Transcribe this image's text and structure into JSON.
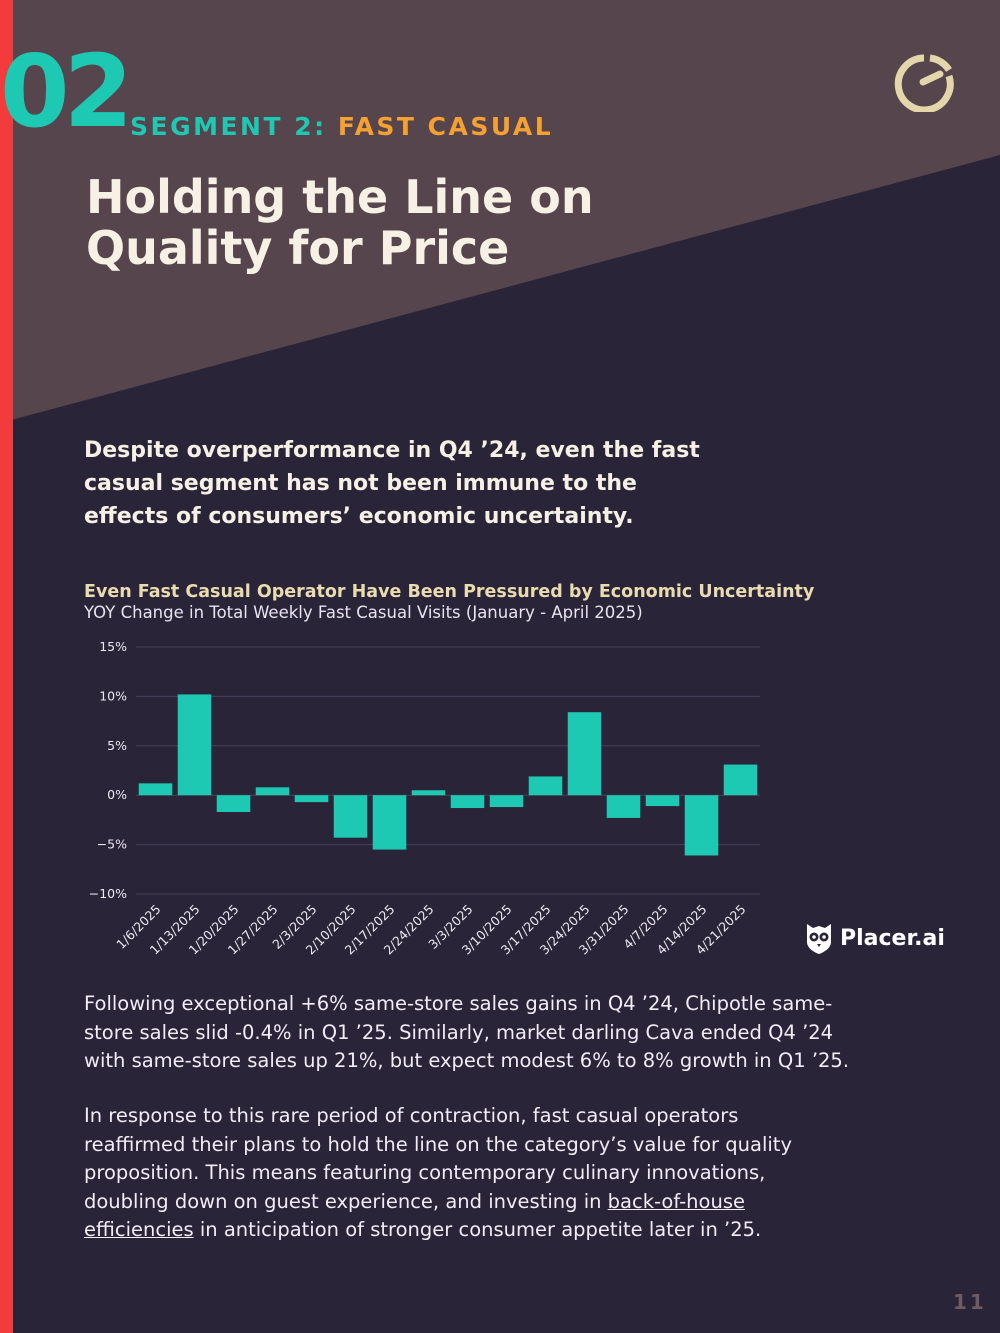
{
  "header": {
    "segment_number": "02",
    "segment_prefix": "SEGMENT 2:",
    "segment_name": "FAST CASUAL",
    "logo_icon": "clock-logo-icon"
  },
  "title": {
    "line1": "Holding the Line on",
    "line2": "Quality for Price"
  },
  "lede": {
    "line1": "Despite overperformance in Q4 ’24, even the fast",
    "line2": "casual segment has not been immune to the",
    "line3": "effects of consumers’ economic uncertainty."
  },
  "colors": {
    "bar": "#1ec9b3",
    "accent": "#f5a033",
    "red": "#f23b3b",
    "background": "#2a2438",
    "header_bg": "#56454d"
  },
  "chart_data": {
    "type": "bar",
    "title": "Even Fast Casual Operator Have Been Pressured by Economic Uncertainty",
    "subtitle": "YOY Change in Total Weekly Fast Casual Visits (January - April 2025)",
    "xlabel": "",
    "ylabel": "",
    "ylim": [
      -10,
      15
    ],
    "yticks": [
      15,
      10,
      5,
      0,
      -5,
      -10
    ],
    "ytick_labels": [
      "15%",
      "10%",
      "5%",
      "0%",
      "−5%",
      "−10%"
    ],
    "grid": true,
    "categories": [
      "1/6/2025",
      "1/13/2025",
      "1/20/2025",
      "1/27/2025",
      "2/3/2025",
      "2/10/2025",
      "2/17/2025",
      "2/24/2025",
      "3/3/2025",
      "3/10/2025",
      "3/17/2025",
      "3/24/2025",
      "3/31/2025",
      "4/7/2025",
      "4/14/2025",
      "4/21/2025"
    ],
    "values": [
      1.2,
      10.2,
      -1.7,
      0.8,
      -0.7,
      -4.3,
      -5.5,
      0.5,
      -1.3,
      -1.2,
      1.9,
      8.4,
      -2.3,
      -1.1,
      -6.1,
      3.1
    ]
  },
  "brand": {
    "name": "Placer.ai",
    "icon": "owl-icon"
  },
  "body": {
    "p1_line1": "Following exceptional +6% same-store sales gains in Q4 ’24, Chipotle same-",
    "p1_line2": "store sales slid -0.4% in Q1 ’25. Similarly, market darling Cava ended Q4 ’24",
    "p1_line3": "with same-store sales up 21%, but expect modest 6% to 8% growth in Q1 ’25.",
    "p2_line1": "In response to this rare period of contraction, fast casual operators",
    "p2_line2": "reaffirmed their plans to hold the line on the category’s value for quality",
    "p2_line3": "proposition. This means featuring contemporary culinary innovations,",
    "p2_line4_pre": "doubling down on guest experience, and investing in ",
    "p2_link_part1": "back-of-house",
    "p2_link_part2": "efficiencies",
    "p2_line5_post": " in anticipation of stronger consumer appetite later in ’25."
  },
  "page_number": "11"
}
